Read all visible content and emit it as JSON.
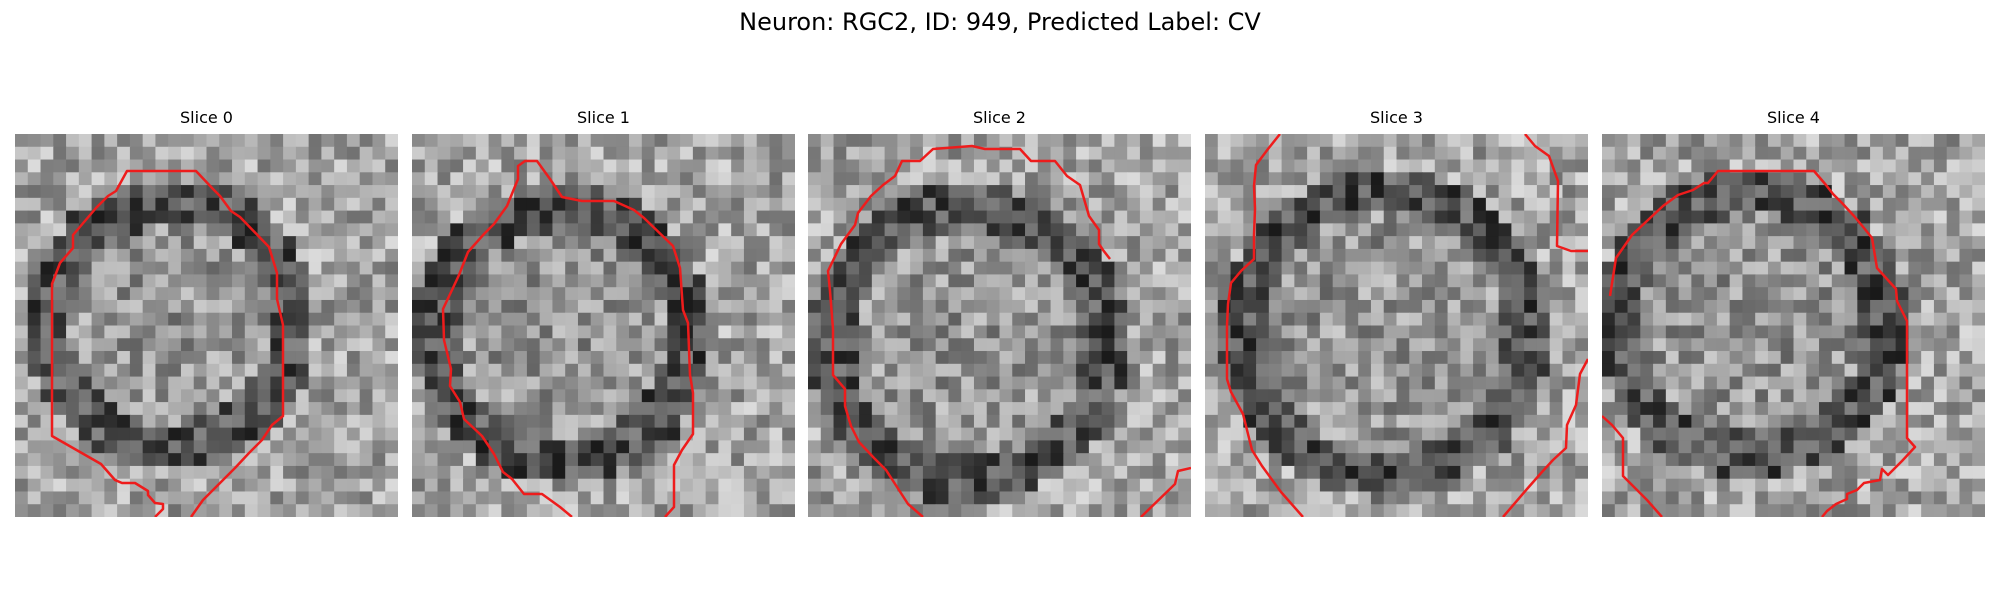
{
  "figure": {
    "title": "Neuron: RGC2, ID: 949, Predicted Label: CV"
  },
  "colors": {
    "background": "#ffffff",
    "contour": "#ee1c1c"
  },
  "panels": [
    {
      "title": "Slice 0"
    },
    {
      "title": "Slice 1"
    },
    {
      "title": "Slice 2"
    },
    {
      "title": "Slice 3"
    },
    {
      "title": "Slice 4"
    }
  ]
}
